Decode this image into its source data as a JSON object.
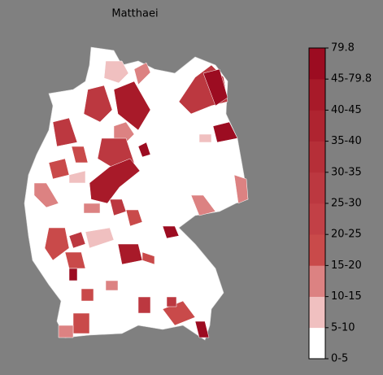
{
  "title": "Matthaei",
  "colorbar": {
    "labels": [
      "0-5",
      "5-10",
      "10-15",
      "15-20",
      "20-25",
      "25-30",
      "30-35",
      "35-40",
      "40-45",
      "45-79.8",
      "79.8"
    ],
    "colors": [
      "#ffffff",
      "#f0c0c0",
      "#dc8282",
      "#c94a4a",
      "#c24046",
      "#bc3840",
      "#b62f38",
      "#af2430",
      "#a81a29",
      "#9c0c21"
    ]
  }
}
